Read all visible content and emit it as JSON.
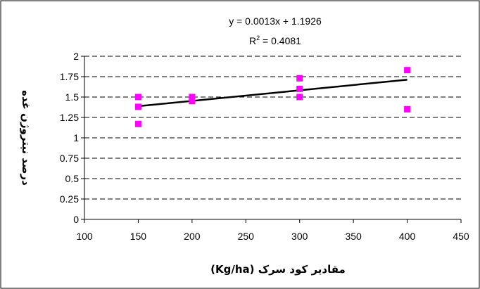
{
  "chart_data": {
    "type": "scatter",
    "xlabel": "مقادیر کود سرک (Kg/ha)",
    "ylabel": "درصد نیتروژن غده",
    "xlim": [
      100,
      450
    ],
    "ylim": [
      0,
      2
    ],
    "x_ticks": [
      "100",
      "150",
      "200",
      "250",
      "300",
      "350",
      "400",
      "450"
    ],
    "y_ticks": [
      "0",
      "0.25",
      "0.5",
      "0.75",
      "1",
      "1.25",
      "1.5",
      "1.75",
      "2"
    ],
    "grid": "horizontal-dashed",
    "marker_color": "#ff00ff",
    "trendline_color": "#000000",
    "series": [
      {
        "points": [
          [
            150,
            1.5
          ],
          [
            150,
            1.38
          ],
          [
            150,
            1.17
          ],
          [
            200,
            1.5
          ],
          [
            200,
            1.45
          ],
          [
            300,
            1.73
          ],
          [
            300,
            1.6
          ],
          [
            300,
            1.5
          ],
          [
            400,
            1.83
          ],
          [
            400,
            1.35
          ]
        ]
      }
    ],
    "trendline": {
      "slope": 0.0013,
      "intercept": 1.1926,
      "x_range": [
        150,
        400
      ],
      "equation": "y = 0.0013x + 1.1926",
      "r2_prefix": "R",
      "r2_exp": "2",
      "r2_value": " = 0.4081"
    }
  }
}
